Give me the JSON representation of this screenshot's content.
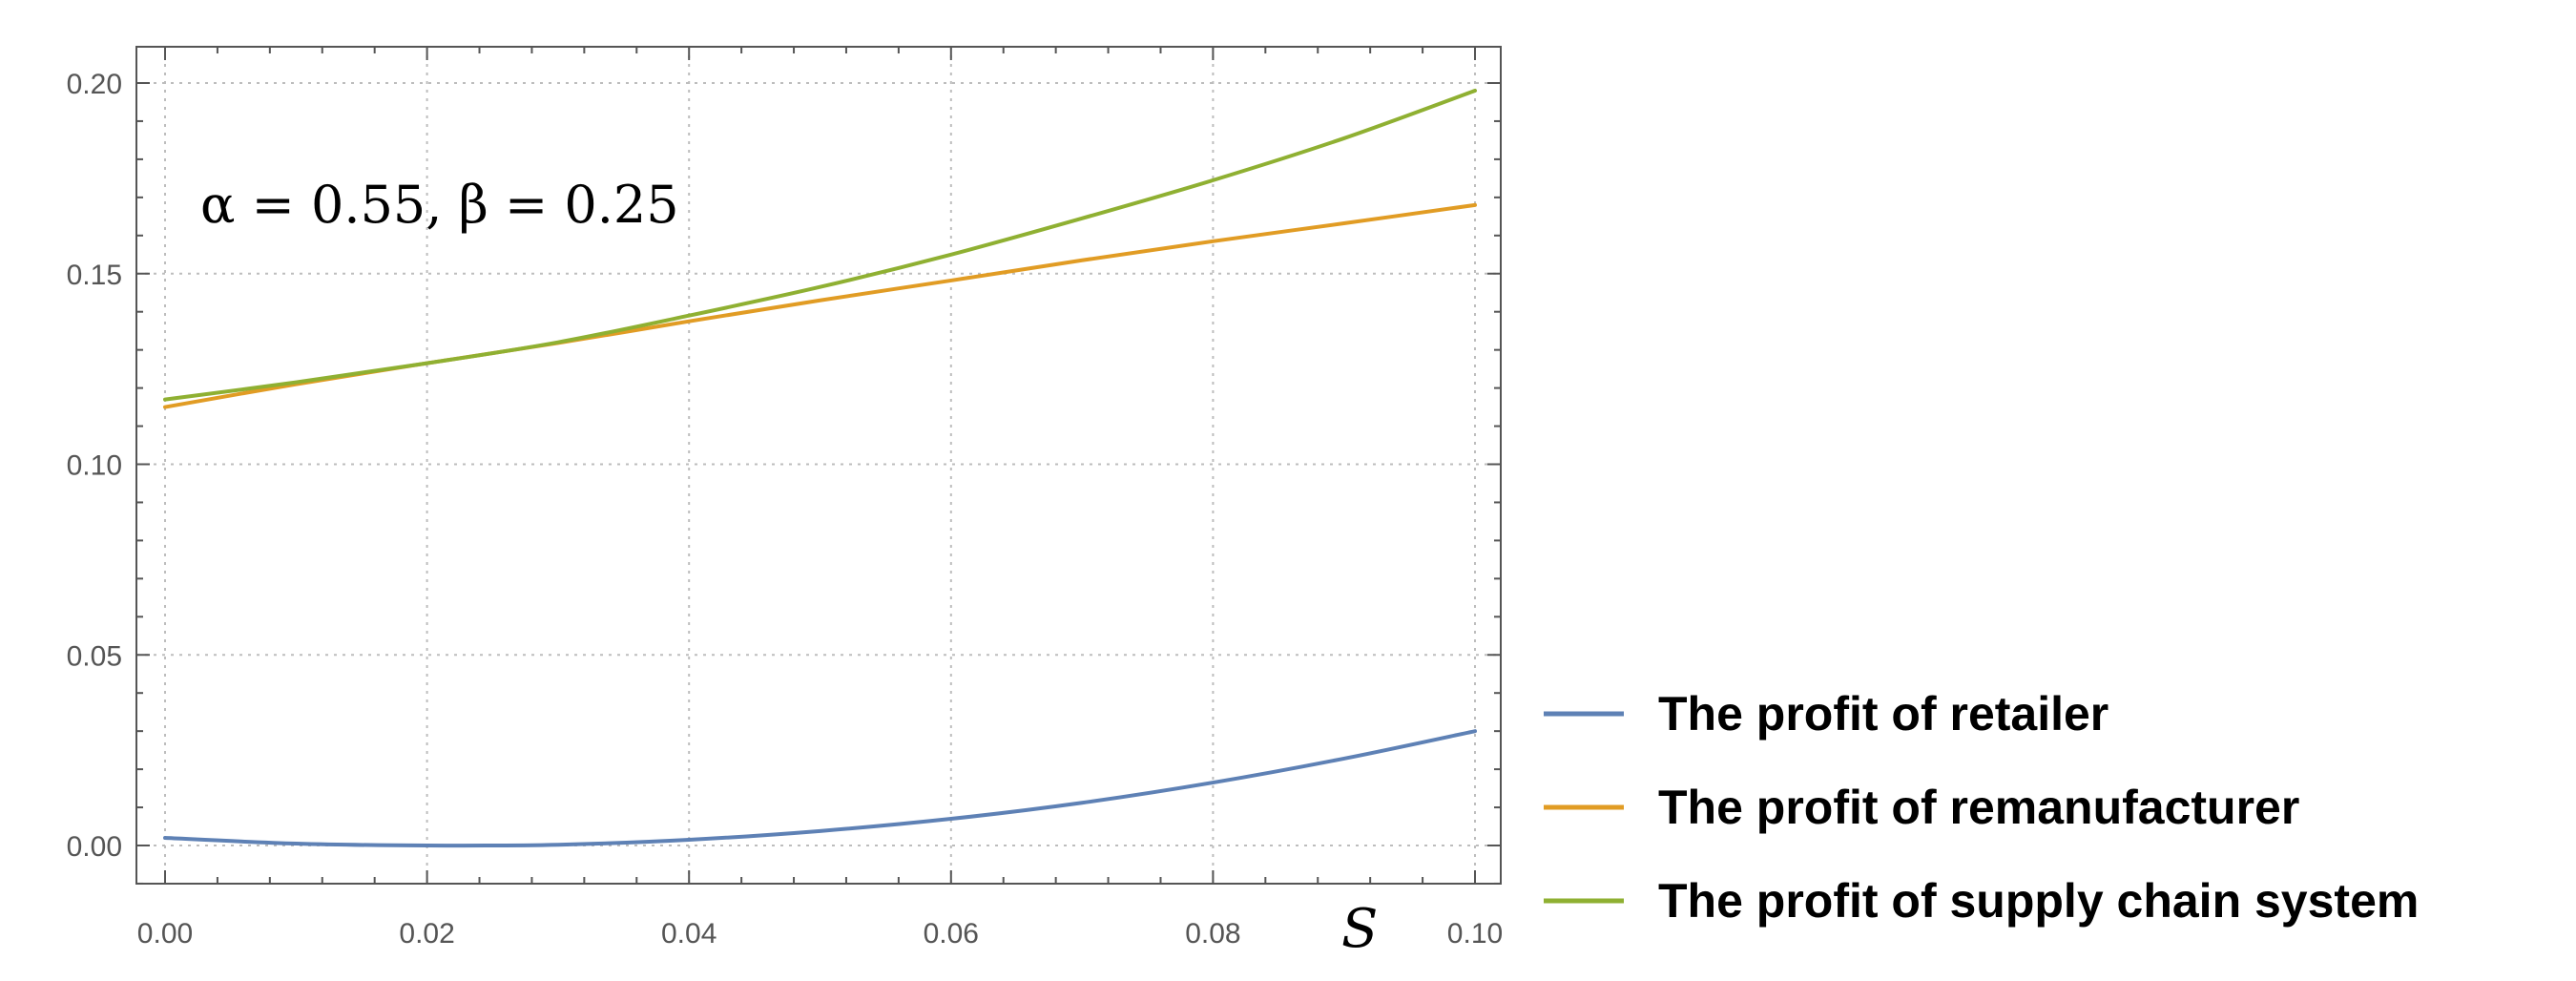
{
  "chart_data": {
    "type": "line",
    "xlabel": "S",
    "ylabel": "",
    "xlim": [
      0,
      0.1
    ],
    "ylim": [
      -0.01,
      0.207
    ],
    "xticks": [
      0.0,
      0.02,
      0.04,
      0.06,
      0.08,
      0.1
    ],
    "xtick_labels": [
      "0.00",
      "0.02",
      "0.04",
      "0.06",
      "0.08",
      "0.10"
    ],
    "yticks": [
      0.0,
      0.05,
      0.1,
      0.15,
      0.2
    ],
    "ytick_labels": [
      "0.00",
      "0.05",
      "0.10",
      "0.15",
      "0.20"
    ],
    "grid": true,
    "legend_position": "bottom-right, outside plot",
    "annotation": "α = 0.55, β = 0.25",
    "series": [
      {
        "name": "The profit of retailer",
        "color": "#5E81B5",
        "x": [
          0,
          0.01,
          0.02,
          0.03,
          0.04,
          0.05,
          0.06,
          0.07,
          0.08,
          0.09,
          0.1
        ],
        "y": [
          0.002,
          0.0005,
          0.0,
          0.0002,
          0.0015,
          0.0038,
          0.007,
          0.0112,
          0.0165,
          0.0228,
          0.03
        ]
      },
      {
        "name": "The profit of remanufacturer",
        "color": "#E19C24",
        "x": [
          0,
          0.01,
          0.02,
          0.03,
          0.04,
          0.05,
          0.06,
          0.07,
          0.08,
          0.09,
          0.1
        ],
        "y": [
          0.115,
          0.121,
          0.1265,
          0.1318,
          0.1375,
          0.143,
          0.1482,
          0.1535,
          0.1585,
          0.1632,
          0.168
        ]
      },
      {
        "name": "The profit of supply chain system",
        "color": "#8FB032",
        "x": [
          0,
          0.01,
          0.02,
          0.03,
          0.04,
          0.05,
          0.06,
          0.07,
          0.08,
          0.09,
          0.1
        ],
        "y": [
          0.117,
          0.1215,
          0.1265,
          0.132,
          0.139,
          0.1465,
          0.155,
          0.1645,
          0.1745,
          0.1855,
          0.198
        ]
      }
    ]
  }
}
